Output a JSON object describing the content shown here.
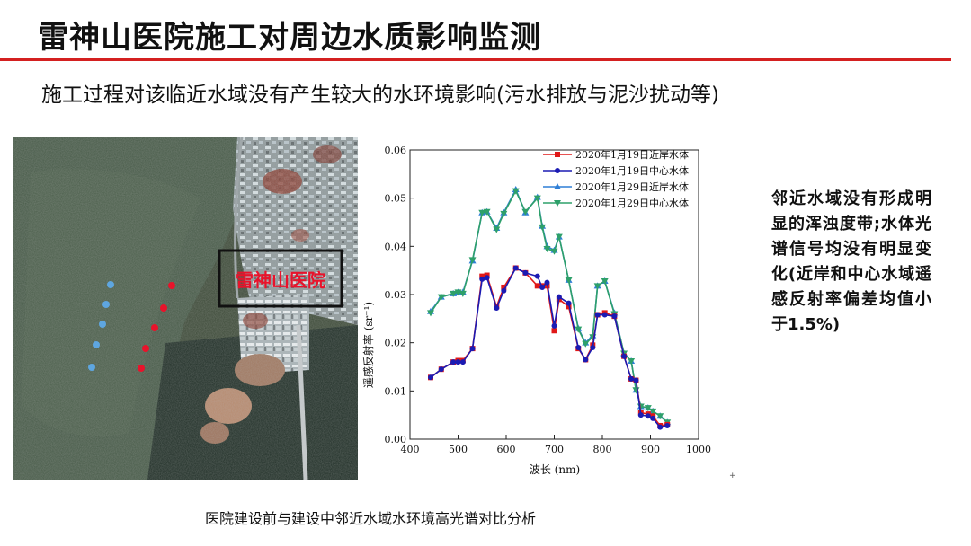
{
  "title": "雷神山医院施工对周边水质影响监测",
  "subtitle": "施工过程对该临近水域没有产生较大的水环境影响(污水排放与泥沙扰动等)",
  "photo": {
    "label": "雷神山医院",
    "label_color": "#e8132b",
    "box_color": "#111111",
    "dot_colors": {
      "center": "#5ea6e0",
      "nearshore": "#e8132b"
    }
  },
  "side_note": "邻近水域没有形成明显的浑浊度带;水体光谱信号均没有明显变化(近岸和中心水域遥感反射率偏差均值小于1.5%)",
  "caption": "医院建设前与建设中邻近水域水环境高光谱对比分析",
  "small_mark": "+",
  "chart_data": {
    "type": "line",
    "title": "",
    "xlabel": "波长 (nm)",
    "ylabel": "遥感反射率 (sr⁻¹)",
    "xlim": [
      400,
      1000
    ],
    "ylim": [
      0,
      0.06
    ],
    "xticks": [
      400,
      500,
      600,
      700,
      800,
      900,
      1000
    ],
    "yticks": [
      0,
      0.01,
      0.02,
      0.03,
      0.04,
      0.05,
      0.06
    ],
    "xtick_labels": [
      "400",
      "500",
      "600",
      "700",
      "800",
      "900",
      "1000"
    ],
    "ytick_labels": [
      "0.00",
      "0.01",
      "0.02",
      "0.03",
      "0.04",
      "0.05",
      "0.06"
    ],
    "legend_position": "top-right",
    "series": [
      {
        "name": "2020年1月19日近岸水体",
        "color": "#e01818",
        "marker": "square",
        "x": [
          443,
          465,
          490,
          500,
          510,
          530,
          550,
          560,
          580,
          595,
          620,
          640,
          665,
          675,
          685,
          700,
          710,
          730,
          750,
          765,
          780,
          790,
          805,
          825,
          845,
          860,
          870,
          880,
          895,
          905,
          920,
          935
        ],
        "values": [
          0.0128,
          0.0145,
          0.016,
          0.0163,
          0.0163,
          0.0188,
          0.0338,
          0.034,
          0.0275,
          0.0315,
          0.0355,
          0.0345,
          0.0318,
          0.0318,
          0.0318,
          0.0225,
          0.029,
          0.0275,
          0.0188,
          0.0165,
          0.0195,
          0.0258,
          0.0262,
          0.0255,
          0.0172,
          0.0125,
          0.0122,
          0.0055,
          0.0052,
          0.0048,
          0.0028,
          0.003
        ]
      },
      {
        "name": "2020年1月19日中心水体",
        "color": "#1b1bb3",
        "marker": "circle",
        "x": [
          443,
          465,
          490,
          500,
          510,
          530,
          550,
          560,
          580,
          595,
          620,
          640,
          665,
          675,
          685,
          700,
          710,
          730,
          750,
          765,
          780,
          790,
          805,
          825,
          845,
          860,
          870,
          880,
          895,
          905,
          920,
          935
        ],
        "values": [
          0.0128,
          0.0145,
          0.016,
          0.016,
          0.016,
          0.0188,
          0.0332,
          0.0335,
          0.0272,
          0.0308,
          0.0355,
          0.0345,
          0.0338,
          0.0315,
          0.0325,
          0.0235,
          0.0295,
          0.0282,
          0.019,
          0.0165,
          0.019,
          0.0258,
          0.0258,
          0.0255,
          0.0172,
          0.0125,
          0.0122,
          0.005,
          0.0048,
          0.0043,
          0.0025,
          0.0028
        ]
      },
      {
        "name": "2020年1月29日近岸水体",
        "color": "#2f7fd6",
        "marker": "triangle",
        "x": [
          443,
          465,
          490,
          500,
          510,
          530,
          550,
          560,
          580,
          595,
          620,
          640,
          665,
          675,
          685,
          700,
          710,
          730,
          750,
          765,
          780,
          790,
          805,
          825,
          845,
          860,
          870,
          880,
          895,
          905,
          920,
          935
        ],
        "values": [
          0.0265,
          0.0295,
          0.0302,
          0.0305,
          0.0305,
          0.037,
          0.047,
          0.0472,
          0.0438,
          0.047,
          0.0518,
          0.047,
          0.0502,
          0.0442,
          0.04,
          0.0392,
          0.042,
          0.033,
          0.023,
          0.02,
          0.0215,
          0.0318,
          0.0328,
          0.0262,
          0.0178,
          0.0162,
          0.0102,
          0.0068,
          0.0065,
          0.0058,
          0.0048,
          0.0035
        ]
      },
      {
        "name": "2020年1月29日中心水体",
        "color": "#2ea06a",
        "marker": "triangle-down",
        "x": [
          443,
          465,
          490,
          500,
          510,
          530,
          550,
          560,
          580,
          595,
          620,
          640,
          665,
          675,
          685,
          700,
          710,
          730,
          750,
          765,
          780,
          790,
          805,
          825,
          845,
          860,
          870,
          880,
          895,
          905,
          920,
          935
        ],
        "values": [
          0.0262,
          0.0295,
          0.0302,
          0.0305,
          0.0302,
          0.0372,
          0.047,
          0.0472,
          0.0435,
          0.0468,
          0.0515,
          0.0472,
          0.05,
          0.044,
          0.0395,
          0.039,
          0.042,
          0.033,
          0.0228,
          0.0198,
          0.0212,
          0.0318,
          0.0328,
          0.026,
          0.0178,
          0.0162,
          0.0102,
          0.0068,
          0.0065,
          0.0058,
          0.0048,
          0.0035
        ]
      }
    ]
  }
}
